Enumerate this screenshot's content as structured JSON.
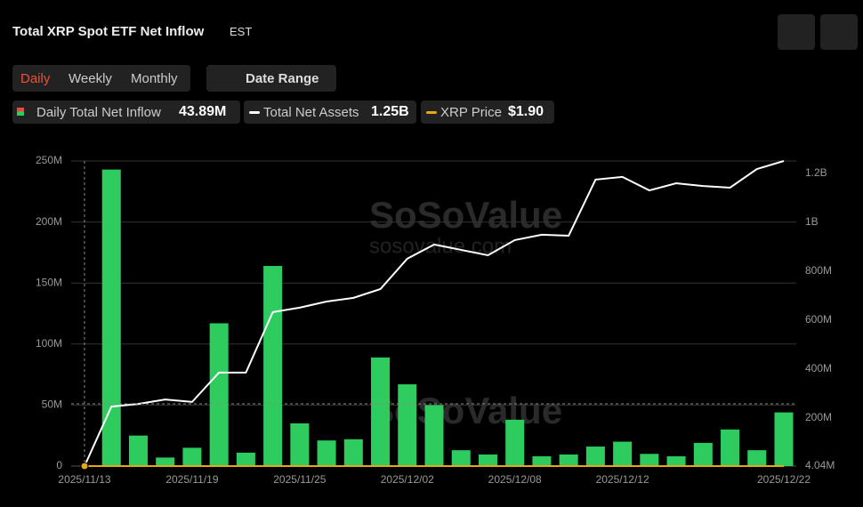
{
  "header": {
    "title": "Total XRP Spot ETF Net Inflow",
    "timezone": "EST"
  },
  "tabs": [
    "Daily",
    "Weekly",
    "Monthly"
  ],
  "date_range": "Date Range",
  "legend": [
    {
      "label": "Daily Total Net Inflow",
      "value": "43.89M"
    },
    {
      "label": "Total Net Assets",
      "value": "1.25B"
    },
    {
      "label": "XRP Price",
      "value": "$1.90"
    }
  ],
  "watermark": [
    "SoSoValue",
    "sosovalue.com"
  ],
  "chart_data": {
    "type": "bar-line",
    "categories": [
      "2025/11/13",
      null,
      null,
      null,
      "2025/11/19",
      null,
      null,
      null,
      "2025/11/25",
      null,
      null,
      null,
      "2025/12/02",
      null,
      null,
      null,
      "2025/12/08",
      null,
      null,
      null,
      "2025/12/12",
      null,
      null,
      null,
      null,
      null,
      "2025/12/22"
    ],
    "series": [
      {
        "name": "Daily Total Net Inflow",
        "color": "#2ecc5f",
        "values": [
          0,
          243,
          25,
          7,
          15,
          117,
          11,
          164,
          35,
          21,
          22,
          89,
          67,
          50,
          13,
          9.5,
          38,
          8,
          9.5,
          16,
          20,
          10,
          8,
          19,
          30,
          13,
          44
        ]
      },
      {
        "name": "Total Net Assets",
        "color": "#ffffff",
        "axis": "y2",
        "values": [
          4.04,
          247,
          258,
          276,
          266,
          386,
          386,
          633,
          651,
          676,
          691,
          727,
          851,
          909,
          887,
          865,
          927,
          949,
          945,
          1174,
          1185,
          1130,
          1159,
          1148,
          1141,
          1217,
          1250
        ]
      }
    ],
    "ylim": [
      0,
      250
    ],
    "yticks": [
      0,
      {
        "value": 50,
        "label": "50M"
      },
      {
        "value": 100,
        "label": "100M"
      },
      {
        "value": 150,
        "label": "150M"
      },
      {
        "value": 200,
        "label": "200M"
      },
      {
        "value": 250,
        "label": "250M"
      }
    ],
    "y2lim": [
      4.04,
      1250
    ],
    "y2ticks": [
      {
        "value": 4.04,
        "label": "4.04M"
      },
      {
        "value": 200,
        "label": "200M"
      },
      {
        "value": 400,
        "label": "400M"
      },
      {
        "value": 600,
        "label": "600M"
      },
      {
        "value": 800,
        "label": "800M"
      },
      {
        "value": 1000,
        "label": "1B"
      },
      {
        "value": 1200,
        "label": "1.2B"
      }
    ],
    "grid": true
  }
}
